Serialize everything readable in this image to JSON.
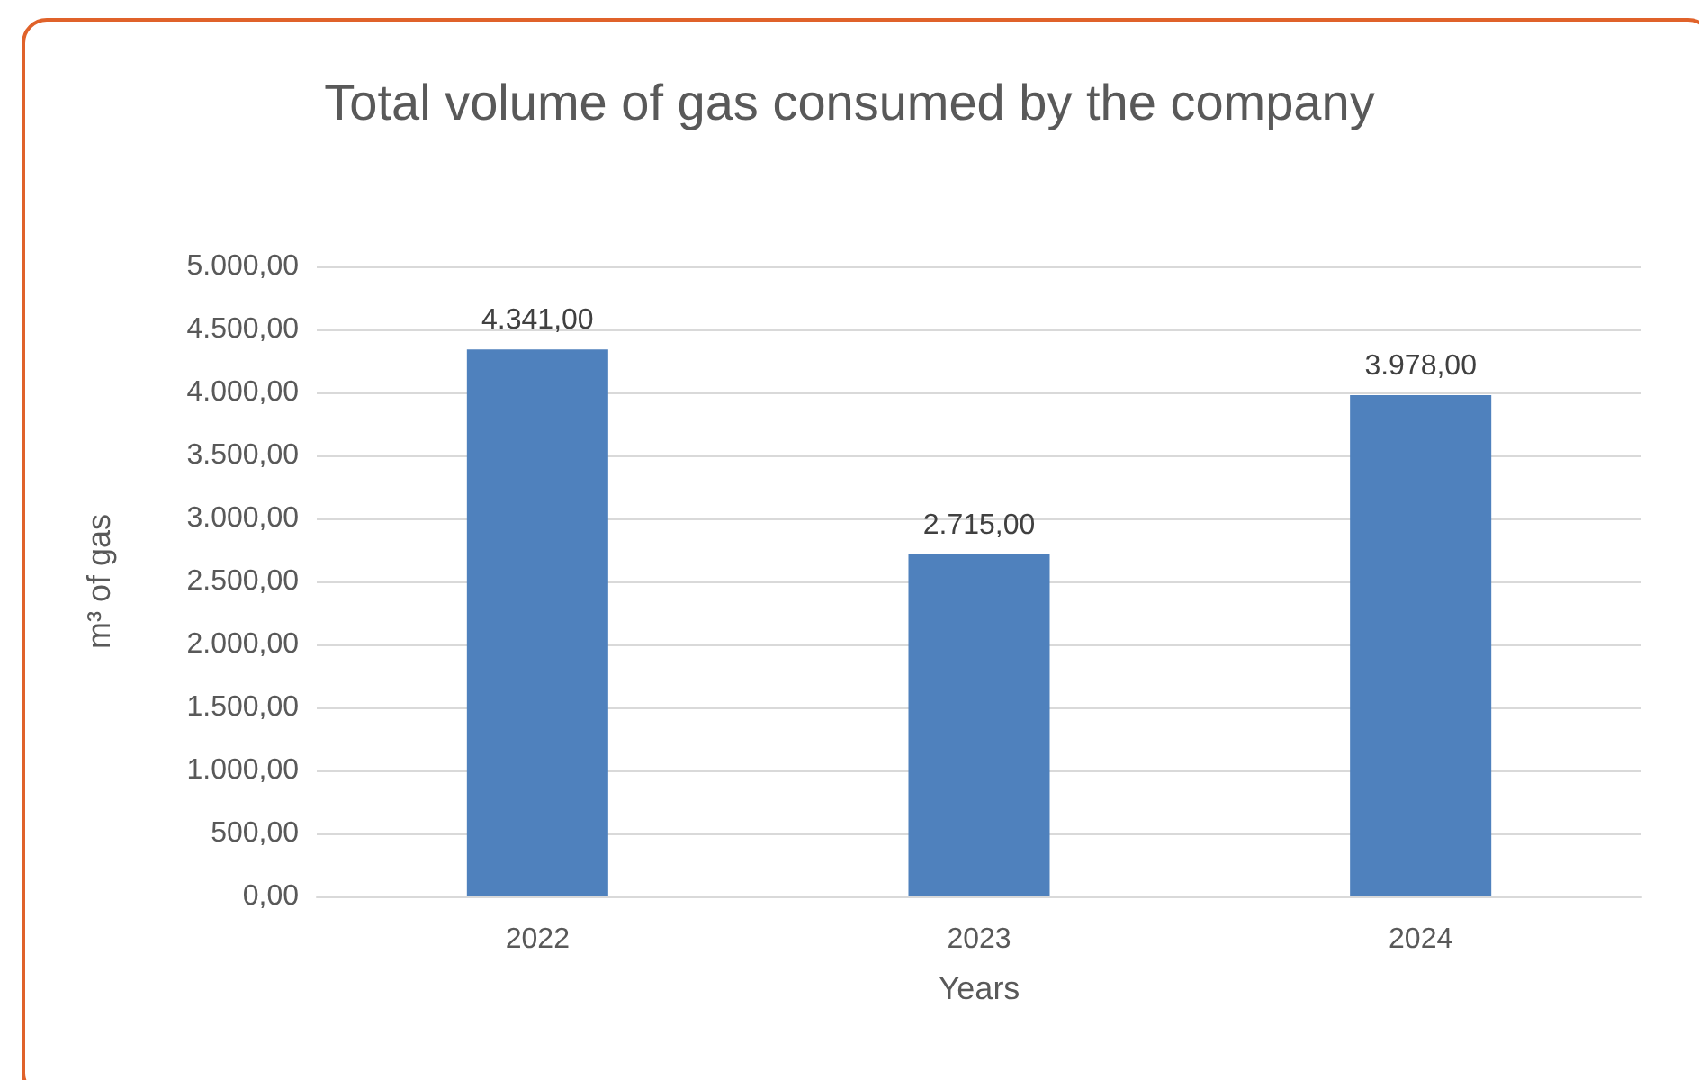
{
  "chart_data": {
    "type": "bar",
    "title": "Total volume of gas consumed by the company",
    "xlabel": "Years",
    "ylabel": "m³ of gas",
    "categories": [
      "2022",
      "2023",
      "2024"
    ],
    "values": [
      4341,
      2715,
      3978
    ],
    "value_labels": [
      "4.341,00",
      "2.715,00",
      "3.978,00"
    ],
    "color": "#4f81bd",
    "ylim": [
      0,
      5000
    ],
    "yticks": [
      {
        "value": 0,
        "label": "0,00"
      },
      {
        "value": 500,
        "label": "500,00"
      },
      {
        "value": 1000,
        "label": "1.000,00"
      },
      {
        "value": 1500,
        "label": "1.500,00"
      },
      {
        "value": 2000,
        "label": "2.000,00"
      },
      {
        "value": 2500,
        "label": "2.500,00"
      },
      {
        "value": 3000,
        "label": "3.000,00"
      },
      {
        "value": 3500,
        "label": "3.500,00"
      },
      {
        "value": 4000,
        "label": "4.000,00"
      },
      {
        "value": 4500,
        "label": "4.500,00"
      },
      {
        "value": 5000,
        "label": "5.000,00"
      }
    ],
    "grid": "y"
  }
}
